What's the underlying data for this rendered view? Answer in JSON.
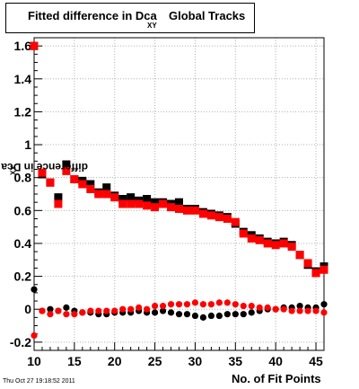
{
  "title": {
    "main": "Fitted difference in Dca",
    "subscript": "XY",
    "tail": "Global Tracks"
  },
  "timestamp": "Thu Oct 27 19:18:52 2011",
  "chart_data": {
    "type": "scatter",
    "xlabel": "No. of Fit Points",
    "ylabel": "difference in Dca",
    "ylabel_subscript": "XY",
    "xlim": [
      10,
      46
    ],
    "ylim": [
      -0.25,
      1.65
    ],
    "xticks": [
      10,
      15,
      20,
      25,
      30,
      35,
      40,
      45
    ],
    "yticks": [
      -0.2,
      0,
      0.2,
      0.4,
      0.6,
      0.8,
      1,
      1.2,
      1.4,
      1.6
    ],
    "ytick_labels": [
      "-0.2",
      "0",
      "0.2",
      "0.4",
      "0.6",
      "0.8",
      "1",
      "1.2",
      "1.4",
      "1.6"
    ],
    "grid": true,
    "colors": {
      "black": "#000000",
      "red": "#ff0000"
    },
    "series": [
      {
        "marker": "square",
        "color": "black",
        "x": [
          10,
          11,
          12,
          13,
          14,
          15,
          16,
          17,
          18,
          19,
          20,
          21,
          22,
          23,
          24,
          25,
          26,
          27,
          28,
          29,
          30,
          31,
          32,
          33,
          34,
          35,
          36,
          37,
          38,
          39,
          40,
          41,
          42,
          43,
          44,
          45,
          46
        ],
        "y": [
          1.6,
          0.82,
          0.77,
          0.68,
          0.88,
          0.79,
          0.78,
          0.76,
          0.71,
          0.74,
          0.69,
          0.67,
          0.68,
          0.66,
          0.67,
          0.65,
          0.65,
          0.64,
          0.65,
          0.61,
          0.61,
          0.59,
          0.58,
          0.57,
          0.56,
          0.52,
          0.47,
          0.45,
          0.43,
          0.41,
          0.4,
          0.41,
          0.39,
          0.33,
          0.27,
          0.23,
          0.26
        ]
      },
      {
        "marker": "square",
        "color": "red",
        "x": [
          10,
          11,
          12,
          13,
          14,
          15,
          16,
          17,
          18,
          19,
          20,
          21,
          22,
          23,
          24,
          25,
          26,
          27,
          28,
          29,
          30,
          31,
          32,
          33,
          34,
          35,
          36,
          37,
          38,
          39,
          40,
          41,
          42,
          43,
          44,
          45,
          46
        ],
        "y": [
          1.6,
          0.83,
          0.77,
          0.64,
          0.84,
          0.79,
          0.76,
          0.73,
          0.7,
          0.7,
          0.68,
          0.64,
          0.64,
          0.64,
          0.63,
          0.62,
          0.64,
          0.62,
          0.61,
          0.6,
          0.6,
          0.58,
          0.57,
          0.56,
          0.55,
          0.53,
          0.46,
          0.43,
          0.42,
          0.4,
          0.39,
          0.4,
          0.38,
          0.33,
          0.28,
          0.22,
          0.24
        ]
      },
      {
        "marker": "circle",
        "color": "black",
        "x": [
          10,
          11,
          12,
          13,
          14,
          15,
          16,
          17,
          18,
          19,
          20,
          21,
          22,
          23,
          24,
          25,
          26,
          27,
          28,
          29,
          30,
          31,
          32,
          33,
          34,
          35,
          36,
          37,
          38,
          39,
          40,
          41,
          42,
          43,
          44,
          45,
          46
        ],
        "y": [
          0.12,
          -0.01,
          0.0,
          -0.01,
          0.01,
          -0.01,
          -0.02,
          -0.02,
          -0.03,
          -0.03,
          -0.02,
          -0.02,
          -0.02,
          -0.01,
          -0.02,
          -0.02,
          -0.01,
          -0.02,
          -0.03,
          -0.03,
          -0.04,
          -0.05,
          -0.04,
          -0.04,
          -0.03,
          -0.03,
          -0.03,
          -0.02,
          -0.01,
          0.0,
          0.0,
          0.01,
          0.01,
          0.02,
          0.01,
          0.01,
          0.03
        ]
      },
      {
        "marker": "circle",
        "color": "red",
        "x": [
          10,
          11,
          12,
          13,
          14,
          15,
          16,
          17,
          18,
          19,
          20,
          21,
          22,
          23,
          24,
          25,
          26,
          27,
          28,
          29,
          30,
          31,
          32,
          33,
          34,
          35,
          36,
          37,
          38,
          39,
          40,
          41,
          42,
          43,
          44,
          45,
          46
        ],
        "y": [
          -0.16,
          -0.01,
          -0.03,
          -0.01,
          -0.03,
          -0.03,
          -0.02,
          -0.01,
          -0.01,
          -0.01,
          -0.01,
          0.0,
          0.0,
          0.01,
          0.0,
          0.02,
          0.02,
          0.03,
          0.03,
          0.03,
          0.04,
          0.03,
          0.03,
          0.04,
          0.04,
          0.03,
          0.02,
          0.02,
          0.01,
          0.01,
          0.0,
          0.0,
          -0.01,
          -0.01,
          -0.01,
          -0.01,
          -0.02
        ]
      }
    ]
  }
}
